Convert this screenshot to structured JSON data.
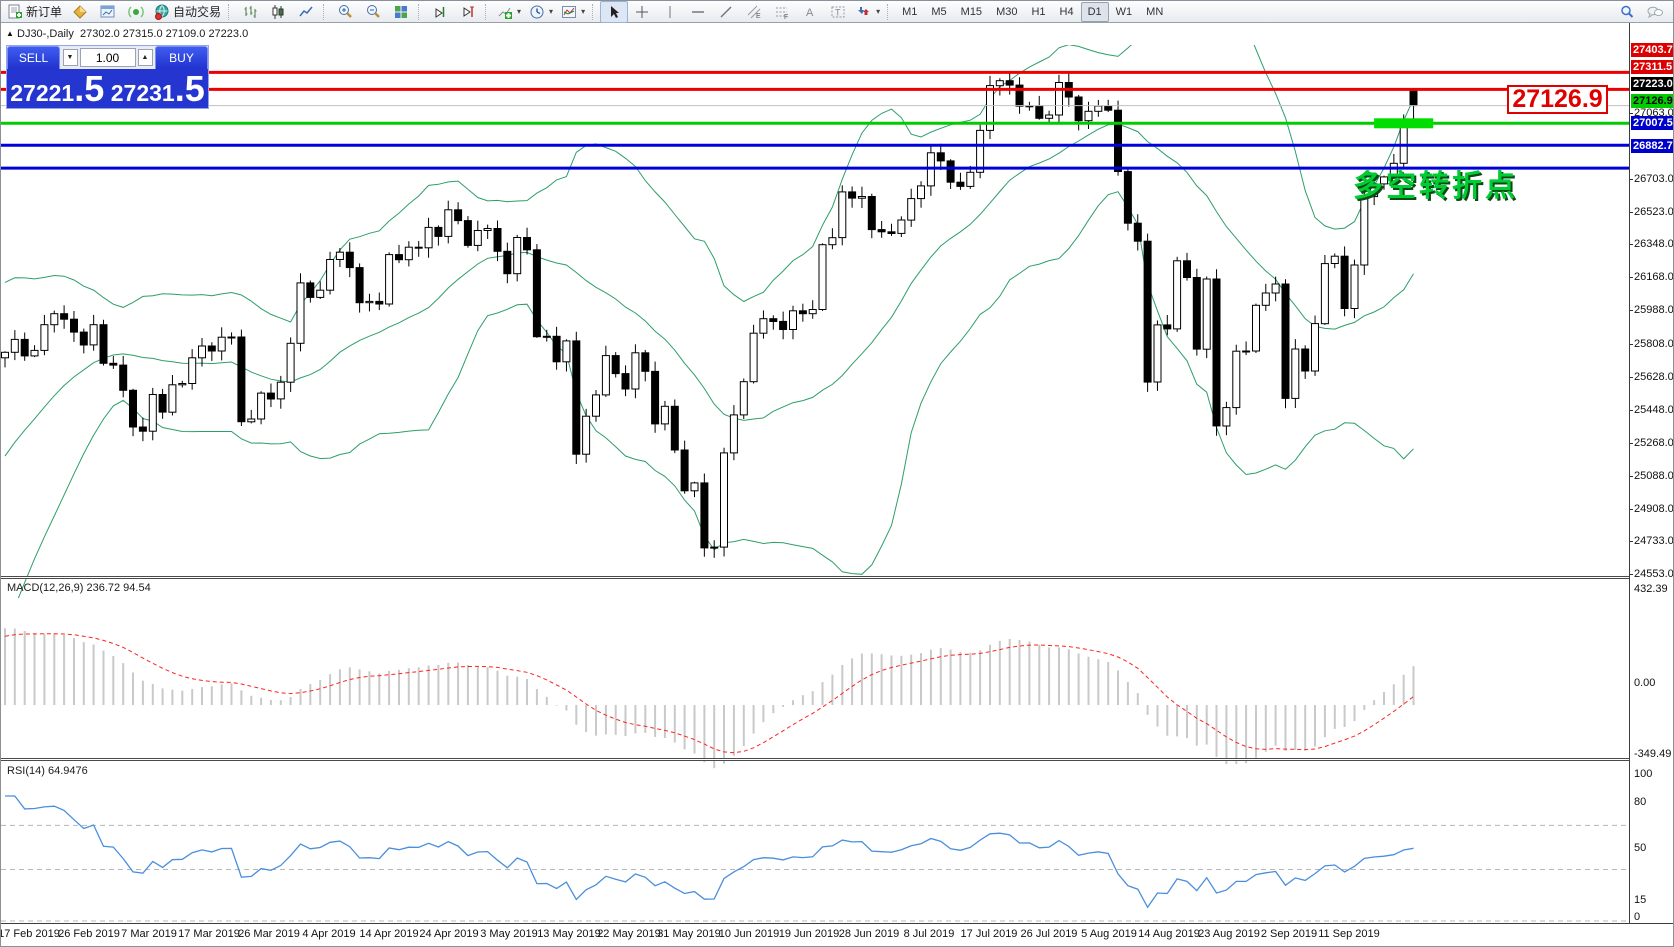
{
  "toolbar": {
    "new_order_label": "新订单",
    "auto_trading_label": "自动交易",
    "timeframes": [
      "M1",
      "M5",
      "M15",
      "M30",
      "H1",
      "H4",
      "D1",
      "W1",
      "MN"
    ],
    "active_timeframe": "D1"
  },
  "chart_header": {
    "symbol_period": "DJ30-,Daily",
    "ohlc_text": "27302.0 27315.0 27109.0 27223.0"
  },
  "trade_panel": {
    "sell_label": "SELL",
    "buy_label": "BUY",
    "volume": "1.00",
    "sell_price_main": "27221",
    "sell_price_frac": ".5",
    "buy_price_main": "27231",
    "buy_price_frac": ".5"
  },
  "annotations": {
    "big_price_label": "27126.9",
    "turning_point_text": "多空转折点"
  },
  "price_axis": {
    "ticks": [
      27063.0,
      26703.0,
      26523.0,
      26348.0,
      26168.0,
      25988.0,
      25808.0,
      25628.0,
      25448.0,
      25268.0,
      25088.0,
      24908.0,
      24733.0,
      24553.0
    ],
    "badges": [
      {
        "label": "27403.7",
        "price": 27403.7,
        "bg": "#dd0000",
        "fg": "#ffffff"
      },
      {
        "label": "27311.5",
        "price": 27311.5,
        "bg": "#dd0000",
        "fg": "#ffffff"
      },
      {
        "label": "27223.0",
        "price": 27223.0,
        "bg": "#000000",
        "fg": "#ffffff"
      },
      {
        "label": "27126.9",
        "price": 27126.9,
        "bg": "#00cc00",
        "fg": "#000000"
      },
      {
        "label": "27007.5",
        "price": 27007.5,
        "bg": "#0000cc",
        "fg": "#ffffff"
      },
      {
        "label": "26882.7",
        "price": 26882.7,
        "bg": "#0000cc",
        "fg": "#ffffff"
      }
    ]
  },
  "macd": {
    "label": "MACD(12,26,9) 236.72 94.54",
    "axis": [
      "432.39",
      "0.00",
      "-349.49"
    ]
  },
  "rsi": {
    "label": "RSI(14) 64.9476",
    "axis": [
      "100",
      "80",
      "50",
      "15",
      "0"
    ]
  },
  "dates": [
    "17 Feb 2019",
    "26 Feb 2019",
    "7 Mar 2019",
    "17 Mar 2019",
    "26 Mar 2019",
    "4 Apr 2019",
    "14 Apr 2019",
    "24 Apr 2019",
    "3 May 2019",
    "13 May 2019",
    "22 May 2019",
    "31 May 2019",
    "10 Jun 2019",
    "19 Jun 2019",
    "28 Jun 2019",
    "8 Jul 2019",
    "17 Jul 2019",
    "26 Jul 2019",
    "5 Aug 2019",
    "14 Aug 2019",
    "23 Aug 2019",
    "2 Sep 2019",
    "11 Sep 2019"
  ],
  "chart_data": {
    "type": "candlestick",
    "symbol": "DJ30-",
    "timeframe": "Daily",
    "last_bar": {
      "open": 27302.0,
      "high": 27315.0,
      "low": 27109.0,
      "close": 27223.0
    },
    "bid": 27221.5,
    "ask": 27231.5,
    "ylim": [
      24553.0,
      27553.0
    ],
    "closes": [
      25880,
      25950,
      25860,
      25890,
      26030,
      26090,
      26060,
      25990,
      25920,
      26030,
      25820,
      25810,
      25673,
      25473,
      25450,
      25650,
      25554,
      25703,
      25710,
      25850,
      25914,
      25887,
      25962,
      25963,
      25502,
      25517,
      25658,
      25626,
      25717,
      25929,
      26258,
      26179,
      26218,
      26385,
      26425,
      26341,
      26150,
      26157,
      26143,
      26412,
      26384,
      26452,
      26449,
      26560,
      26511,
      26656,
      26597,
      26462,
      26543,
      26554,
      26430,
      26308,
      26505,
      26438,
      25965,
      25967,
      25828,
      25942,
      25325,
      25532,
      25648,
      25862,
      25764,
      25680,
      25877,
      25776,
      25490,
      25586,
      25348,
      25126,
      25169,
      24815,
      24819,
      25332,
      25539,
      25720,
      25984,
      26063,
      26048,
      26004,
      26106,
      26090,
      26113,
      26466,
      26504,
      26753,
      26719,
      26728,
      26548,
      26536,
      26527,
      26600,
      26717,
      26786,
      26966,
      26922,
      26806,
      26783,
      26860,
      27088,
      27332,
      27359,
      27335,
      27220,
      27222,
      27154,
      27172,
      27349,
      27270,
      27141,
      27192,
      27221,
      27198,
      26864,
      26583,
      26485,
      25718,
      26029,
      26007,
      26378,
      26287,
      25897,
      26279,
      25479,
      25579,
      25886,
      25887,
      26136,
      26203,
      26252,
      25629,
      25898,
      25778,
      26036,
      26363,
      26403,
      26118,
      26355,
      26728,
      26797,
      26835,
      26909,
      27137,
      27223
    ],
    "warmup_closes": [
      24350,
      24450,
      24550,
      24650,
      24750,
      24850,
      24950,
      25050,
      25150,
      25250,
      25350,
      25450,
      25550,
      25620,
      25690,
      25750,
      25800,
      25830,
      25860,
      25870
    ],
    "levels": [
      {
        "price": 27403.7,
        "color": "#ee0000",
        "width": 3
      },
      {
        "price": 27311.5,
        "color": "#ee0000",
        "width": 3
      },
      {
        "price": 27223.0,
        "color": "#c0c0c0",
        "width": 1
      },
      {
        "price": 27126.9,
        "color": "#00cc00",
        "width": 3
      },
      {
        "price": 27007.5,
        "color": "#0000dd",
        "width": 3
      },
      {
        "price": 26882.7,
        "color": "#0000dd",
        "width": 3
      }
    ],
    "highlight_zone": {
      "start_index": 139,
      "end_index": 145,
      "price": 27126.9,
      "height": 10,
      "color": "#00dd00"
    },
    "candle_colors": {
      "up_fill": "#ffffff",
      "down_fill": "#000000",
      "outline": "#000000"
    },
    "indicators": {
      "bollinger": {
        "period": 20,
        "deviation": 2,
        "color": "#2e9e68"
      },
      "macd": {
        "fast": 12,
        "slow": 26,
        "signal": 9,
        "main_value": 236.72,
        "signal_value": 94.54,
        "histogram_color": "#c9c9c9",
        "signal_color": "#ff2222",
        "range": [
          -349.49,
          432.39
        ]
      },
      "rsi": {
        "period": 14,
        "value": 64.9476,
        "color": "#4a8ede",
        "levels": [
          80,
          50,
          15
        ],
        "range": [
          0,
          100
        ]
      }
    }
  }
}
